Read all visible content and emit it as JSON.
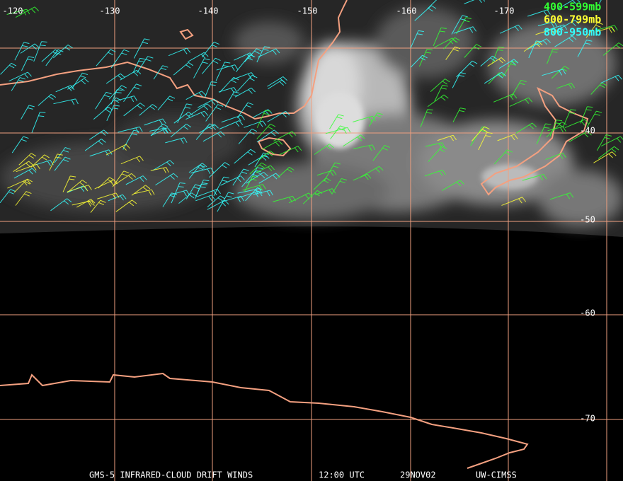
{
  "map": {
    "longitude_labels": [
      "-120",
      "-130",
      "-140",
      "-150",
      "-160",
      "-170"
    ],
    "latitude_labels": [
      "-40",
      "-50",
      "-60",
      "-70"
    ],
    "legend": [
      {
        "label": "400-599mb",
        "color": "#33ff33"
      },
      {
        "label": "600-799mb",
        "color": "#ffff33"
      },
      {
        "label": "800-950mb",
        "color": "#33ffff"
      }
    ],
    "footer": [
      "GMS-5 INFRARED-CLOUD DRIFT WINDS",
      "12:00 UTC",
      "29NOV02",
      "UW-CIMSS"
    ]
  }
}
